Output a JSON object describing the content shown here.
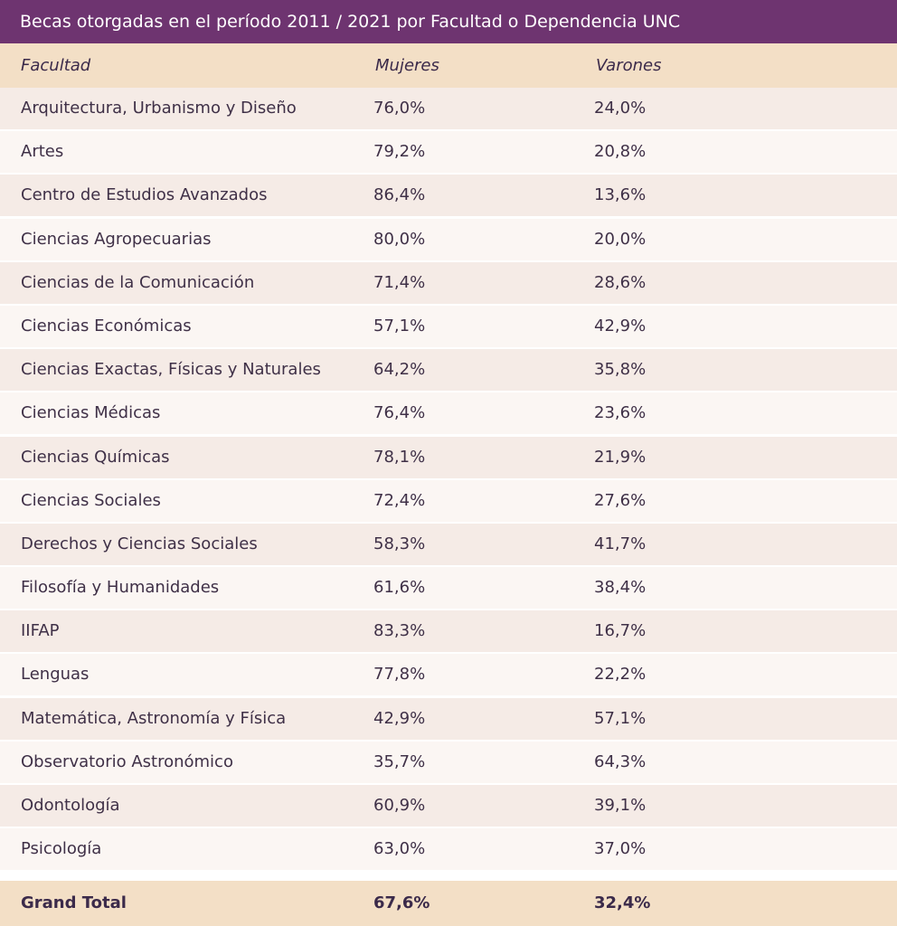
{
  "title": "Becas otorgadas en el período 2011 / 2021 por Facultad o Dependencia UNC",
  "columns": [
    "Facultad",
    "Mujeres",
    "Varones"
  ],
  "rows": [
    {
      "facultad": "Arquitectura, Urbanismo y Diseño",
      "mujeres": "76,0%",
      "varones": "24,0%"
    },
    {
      "facultad": "Artes",
      "mujeres": "79,2%",
      "varones": "20,8%"
    },
    {
      "facultad": "Centro de Estudios Avanzados",
      "mujeres": "86,4%",
      "varones": "13,6%"
    },
    {
      "facultad": "Ciencias Agropecuarias",
      "mujeres": "80,0%",
      "varones": "20,0%"
    },
    {
      "facultad": "Ciencias de la Comunicación",
      "mujeres": "71,4%",
      "varones": "28,6%"
    },
    {
      "facultad": "Ciencias Económicas",
      "mujeres": "57,1%",
      "varones": "42,9%"
    },
    {
      "facultad": "Ciencias Exactas, Físicas y Naturales",
      "mujeres": "64,2%",
      "varones": "35,8%"
    },
    {
      "facultad": "Ciencias Médicas",
      "mujeres": "76,4%",
      "varones": "23,6%"
    },
    {
      "facultad": "Ciencias Químicas",
      "mujeres": "78,1%",
      "varones": "21,9%"
    },
    {
      "facultad": "Ciencias Sociales",
      "mujeres": "72,4%",
      "varones": "27,6%"
    },
    {
      "facultad": "Derechos y Ciencias Sociales",
      "mujeres": "58,3%",
      "varones": "41,7%"
    },
    {
      "facultad": "Filosofía y Humanidades",
      "mujeres": "61,6%",
      "varones": "38,4%"
    },
    {
      "facultad": "IIFAP",
      "mujeres": "83,3%",
      "varones": "16,7%"
    },
    {
      "facultad": "Lenguas",
      "mujeres": "77,8%",
      "varones": "22,2%"
    },
    {
      "facultad": "Matemática, Astronomía y Física",
      "mujeres": "42,9%",
      "varones": "57,1%"
    },
    {
      "facultad": "Observatorio Astronómico",
      "mujeres": "35,7%",
      "varones": "64,3%"
    },
    {
      "facultad": "Odontología",
      "mujeres": "60,9%",
      "varones": "39,1%"
    },
    {
      "facultad": "Psicología",
      "mujeres": "63,0%",
      "varones": "37,0%"
    }
  ],
  "total": {
    "label": "Grand Total",
    "mujeres": "67,6%",
    "varones": "32,4%"
  },
  "colors": {
    "title_bg": "#6e3470",
    "header_bg": "#f3dfc6",
    "row_odd": "#f5ebe6",
    "row_even": "#fbf6f3"
  }
}
